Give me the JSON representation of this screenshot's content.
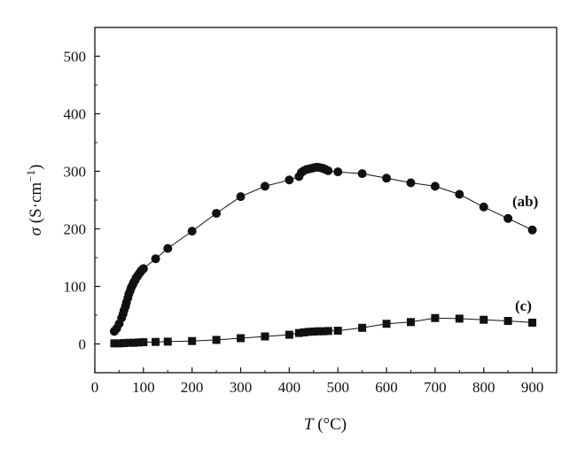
{
  "chart_data": {
    "type": "scatter",
    "title": "",
    "xlabel": {
      "italic": "T",
      "unit": " (°C)"
    },
    "ylabel": {
      "italic": "σ",
      "unit": " (S·cm",
      "exp": "−1",
      "close": ")"
    },
    "xlim": [
      0,
      950
    ],
    "ylim": [
      -50,
      550
    ],
    "xticks": [
      0,
      100,
      200,
      300,
      400,
      500,
      600,
      700,
      800,
      900
    ],
    "yticks": [
      0,
      100,
      200,
      300,
      400,
      500
    ],
    "grid": false,
    "legend": "none",
    "series": [
      {
        "name": "(ab)",
        "marker": "circle",
        "color": "#111111",
        "x": [
          40,
          45,
          50,
          55,
          58,
          60,
          63,
          65,
          68,
          70,
          73,
          75,
          78,
          80,
          83,
          85,
          88,
          90,
          93,
          95,
          98,
          100,
          125,
          150,
          200,
          250,
          300,
          350,
          400,
          420,
          425,
          430,
          435,
          440,
          445,
          450,
          455,
          460,
          465,
          470,
          475,
          480,
          500,
          550,
          600,
          650,
          700,
          750,
          800,
          850,
          900
        ],
        "y": [
          22,
          27,
          35,
          45,
          52,
          58,
          65,
          72,
          80,
          87,
          93,
          98,
          103,
          107,
          111,
          115,
          118,
          121,
          124,
          127,
          129,
          131,
          148,
          166,
          196,
          227,
          256,
          274,
          285,
          291,
          298,
          301,
          303,
          304,
          305,
          306,
          307,
          307,
          306,
          305,
          303,
          301,
          299,
          296,
          288,
          280,
          274,
          260,
          238,
          218,
          198
        ]
      },
      {
        "name": "(c)",
        "marker": "square",
        "color": "#111111",
        "x": [
          40,
          50,
          60,
          70,
          80,
          90,
          100,
          125,
          150,
          200,
          250,
          300,
          350,
          400,
          420,
          430,
          440,
          450,
          460,
          470,
          480,
          500,
          550,
          600,
          650,
          700,
          750,
          800,
          850,
          900
        ],
        "y": [
          1,
          1,
          1.5,
          2,
          2,
          2.5,
          3,
          3.5,
          4,
          5,
          7,
          10,
          13,
          16,
          19,
          20,
          21,
          21.5,
          22,
          22,
          22.5,
          23,
          28,
          35,
          38,
          45,
          44,
          42,
          40,
          37
        ]
      }
    ]
  }
}
